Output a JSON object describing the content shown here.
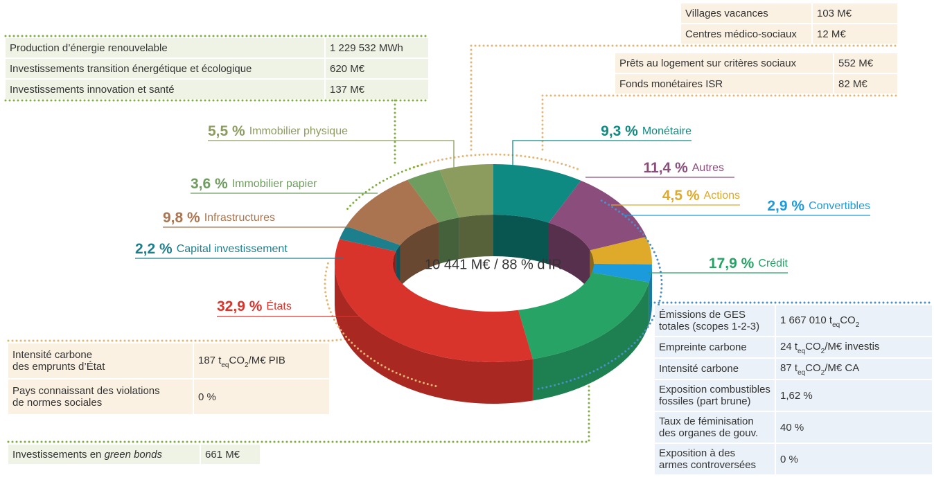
{
  "chart_data": {
    "type": "pie",
    "donut": true,
    "center_label": "10 441 M€ / 88 % d’IR",
    "categories": [
      "Monétaire",
      "Autres",
      "Actions",
      "Convertibles",
      "Crédit",
      "États",
      "Capital investissement",
      "Infrastructures",
      "Immobilier papier",
      "Immobilier physique"
    ],
    "values": [
      9.3,
      11.4,
      4.5,
      2.9,
      17.9,
      32.9,
      2.2,
      9.8,
      3.6,
      5.5
    ],
    "value_labels": [
      "9,3 %",
      "11,4 %",
      "4,5 %",
      "2,9 %",
      "17,9 %",
      "32,9 %",
      "2,2 %",
      "9,8 %",
      "3,6 %",
      "5,5 %"
    ],
    "colors": [
      "#0f8a82",
      "#8a4d7c",
      "#dfa92a",
      "#1b9bdc",
      "#27a366",
      "#d9342c",
      "#1d7f8c",
      "#a9744f",
      "#6f9c5f",
      "#8c9c5e"
    ]
  },
  "tables": [
    {
      "rows": [
        [
          "Production d’énergie renouvelable",
          "1 229 532 MWh"
        ],
        [
          "Investissements transition énergétique et écologique",
          "620 M€"
        ],
        [
          "Investissements innovation et santé",
          "137 M€"
        ]
      ]
    },
    {
      "rows": [
        [
          "Villages vacances",
          "103 M€"
        ],
        [
          "Centres médico-sociaux",
          "12 M€"
        ]
      ]
    },
    {
      "rows": [
        [
          "Prêts au logement sur critères sociaux",
          "552 M€"
        ],
        [
          "Fonds monétaires ISR",
          "82 M€"
        ]
      ]
    },
    {
      "rows": [
        [
          "Intensité carbone\ndes emprunts d’État",
          [
            "187 t",
            "eq",
            "CO",
            "2",
            "/M€ PIB"
          ]
        ],
        [
          "Pays connaissant des violations\nde normes sociales",
          "0 %"
        ]
      ]
    },
    {
      "rows": [
        [
          [
            "Investissements en ",
            "green bonds"
          ],
          "661 M€"
        ]
      ]
    },
    {
      "rows": [
        [
          "Émissions de GES\ntotales (scopes 1-2-3)",
          [
            "1 667 010 t",
            "eq",
            "CO",
            "2"
          ]
        ],
        [
          "Empreinte carbone",
          [
            "24 t",
            "eq",
            "CO",
            "2",
            "/M€ investis"
          ]
        ],
        [
          "Intensité carbone",
          [
            "87 t",
            "eq",
            "CO",
            "2",
            "/M€ CA"
          ]
        ],
        [
          "Exposition combustibles\nfossiles (part brune)",
          "1,62 %"
        ],
        [
          "Taux de féminisation\ndes organes de gouv.",
          "40 %"
        ],
        [
          "Exposition à des\narmes controversées",
          "0 %"
        ]
      ]
    }
  ]
}
